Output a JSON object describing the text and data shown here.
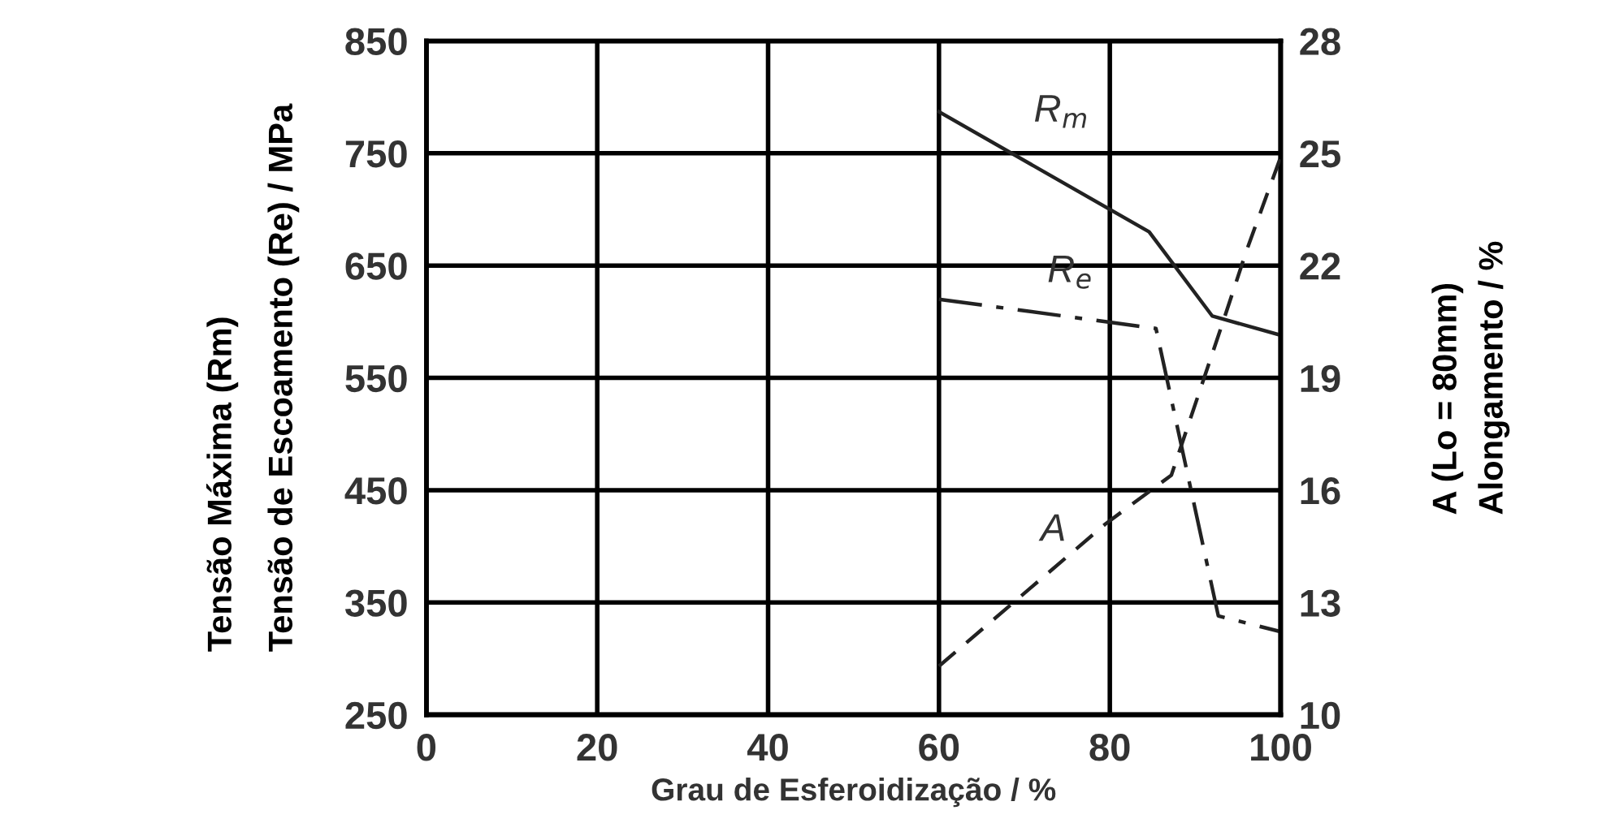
{
  "chart_data": {
    "type": "line",
    "xlabel": "Grau de Esferoidização / %",
    "ylabel": "Tensão Máxima (Rm)\nTensão de Escoamento (Re) / MPa",
    "y2label": "A (Lo = 80mm)\nAlongamento / %",
    "series": [
      {
        "name": "R$_{m}$",
        "color": "#222222",
        "line_style": "solid",
        "x": [
          60,
          84.6,
          92,
          100
        ],
        "values": [
          787,
          680,
          605,
          588
        ]
      },
      {
        "name": "R$_{e}$",
        "color": "#222222",
        "line_style": "dashdot",
        "x": [
          60,
          85.4,
          92.7,
          100
        ],
        "values": [
          620,
          594,
          338,
          324
        ]
      },
      {
        "name": "A",
        "color": "#222222",
        "line_style": "dashed",
        "axis": "y2",
        "x": [
          60,
          79.5,
          87.2,
          93.4,
          96,
          100
        ],
        "values": [
          11.3,
          15.1,
          16.4,
          20.6,
          22.4,
          24.9
        ]
      }
    ],
    "xlim": [
      0,
      100
    ],
    "xticks": [
      0,
      20,
      40,
      60,
      80,
      100
    ],
    "ylim": [
      250,
      850
    ],
    "yticks": [
      250,
      350,
      450,
      550,
      650,
      750,
      850
    ],
    "y2lim": [
      10,
      28
    ],
    "y2ticks": [
      10,
      13,
      16,
      19,
      22,
      25,
      28
    ],
    "grid": true,
    "legend": false,
    "marker": "none"
  }
}
